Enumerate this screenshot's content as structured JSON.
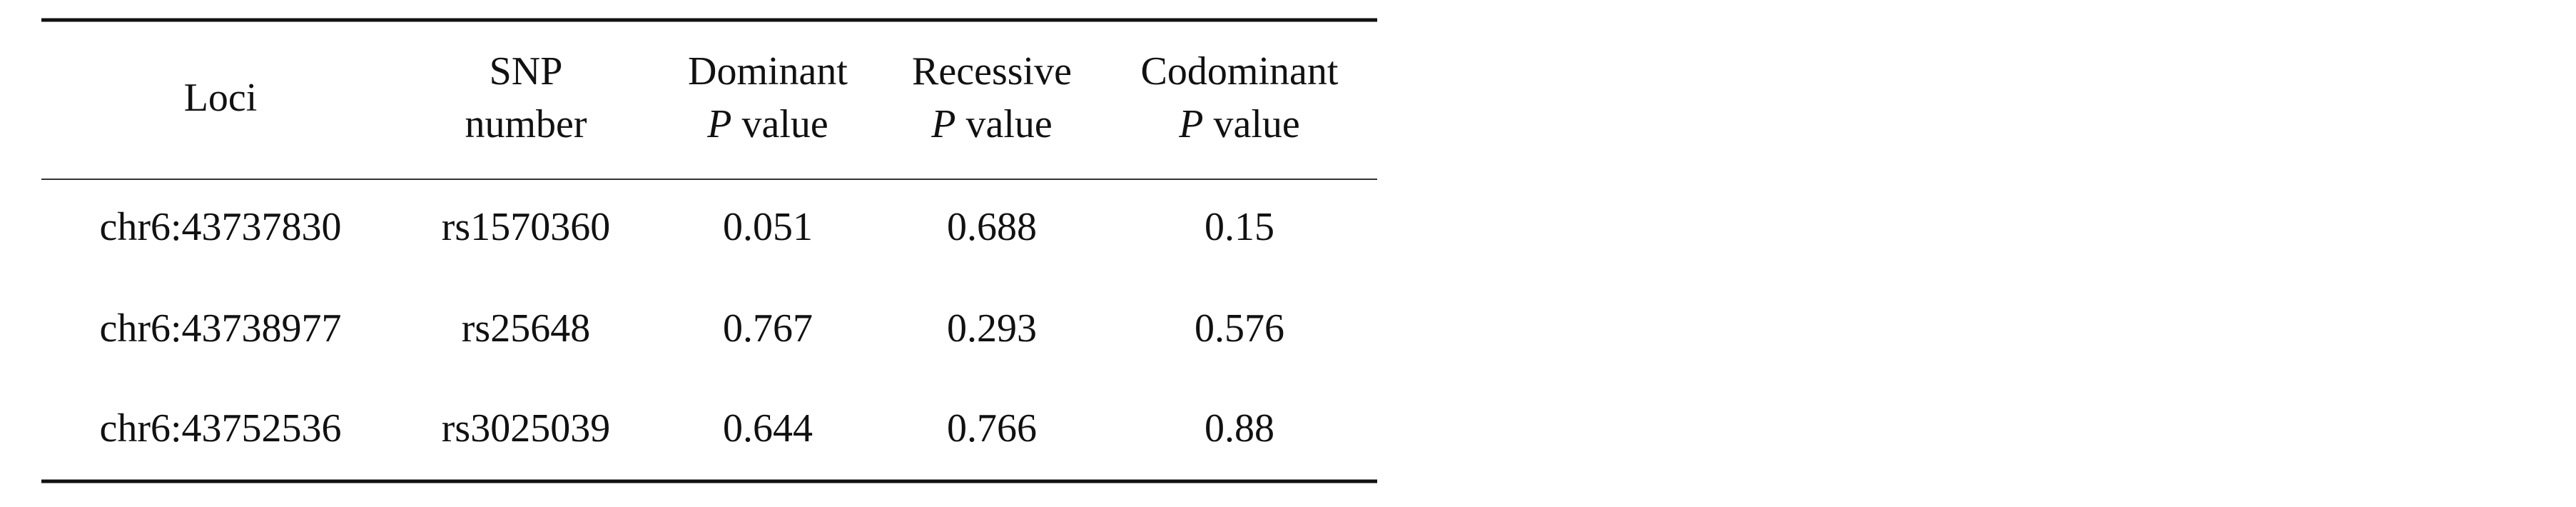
{
  "table": {
    "columns": [
      {
        "label": [
          "Loci"
        ]
      },
      {
        "label": [
          "SNP",
          "number"
        ]
      },
      {
        "label": [
          "Dominant"
        ],
        "italic": "P",
        "suffix": "value"
      },
      {
        "label": [
          "Recessive"
        ],
        "italic": "P",
        "suffix": "value"
      },
      {
        "label": [
          "Codominant"
        ],
        "italic": "P",
        "suffix": "value"
      }
    ],
    "rows": [
      [
        "chr6:43737830",
        "rs1570360",
        0.051,
        0.688,
        0.15
      ],
      [
        "chr6:43738977",
        "rs25648",
        0.767,
        0.293,
        0.576
      ],
      [
        "chr6:43752536",
        "rs3025039",
        0.644,
        0.766,
        0.88
      ]
    ]
  }
}
